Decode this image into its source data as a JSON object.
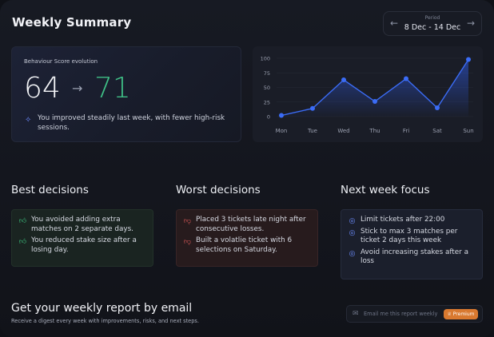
{
  "header": {
    "title": "Weekly Summary",
    "period_label": "Period",
    "period_value": "8 Dec - 14 Dec",
    "prev_icon": "arrow-left-icon",
    "next_icon": "arrow-right-icon"
  },
  "score": {
    "caption": "Behaviour Score evolution",
    "previous": "64",
    "arrow": "→",
    "current": "71",
    "message": "You improved steadily last week, with fewer high-risk sessions.",
    "message_icon": "sparkle-icon",
    "colors": {
      "current": "#3fbf86"
    }
  },
  "chart_data": {
    "type": "line",
    "categories": [
      "Mon",
      "Tue",
      "Wed",
      "Thu",
      "Fri",
      "Sat",
      "Sun"
    ],
    "values": [
      2,
      14,
      63,
      26,
      65,
      15,
      98
    ],
    "ylim": [
      0,
      100
    ],
    "yticks": [
      "100",
      "75",
      "50",
      "25",
      "0"
    ],
    "title": "",
    "xlabel": "",
    "ylabel": "",
    "grid": true,
    "colors": {
      "line": "#3b6cf6",
      "fill": "#2f5ce8"
    }
  },
  "best": {
    "title": "Best decisions",
    "items": [
      "You avoided adding extra matches on 2 separate days.",
      "You reduced stake size after a losing day."
    ],
    "icon": "thumbs-up-icon"
  },
  "worst": {
    "title": "Worst decisions",
    "items": [
      "Placed 3 tickets late night after consecutive losses.",
      "Built a volatlie ticket with 6 selections on Saturday."
    ],
    "icon": "thumbs-down-icon"
  },
  "focus": {
    "title": "Next week focus",
    "items": [
      "Limit tickets after 22:00",
      "Stick to max 3 matches per ticket 2 days this week",
      "Avoid increasing stakes after a loss"
    ],
    "icon": "target-icon"
  },
  "email": {
    "title": "Get your weekly report by email",
    "subtitle": "Receive a digest every week with improvements, risks, and next steps.",
    "input_placeholder": "Email me this report weekly",
    "premium_label": "Premium",
    "icon": "mail-icon"
  }
}
